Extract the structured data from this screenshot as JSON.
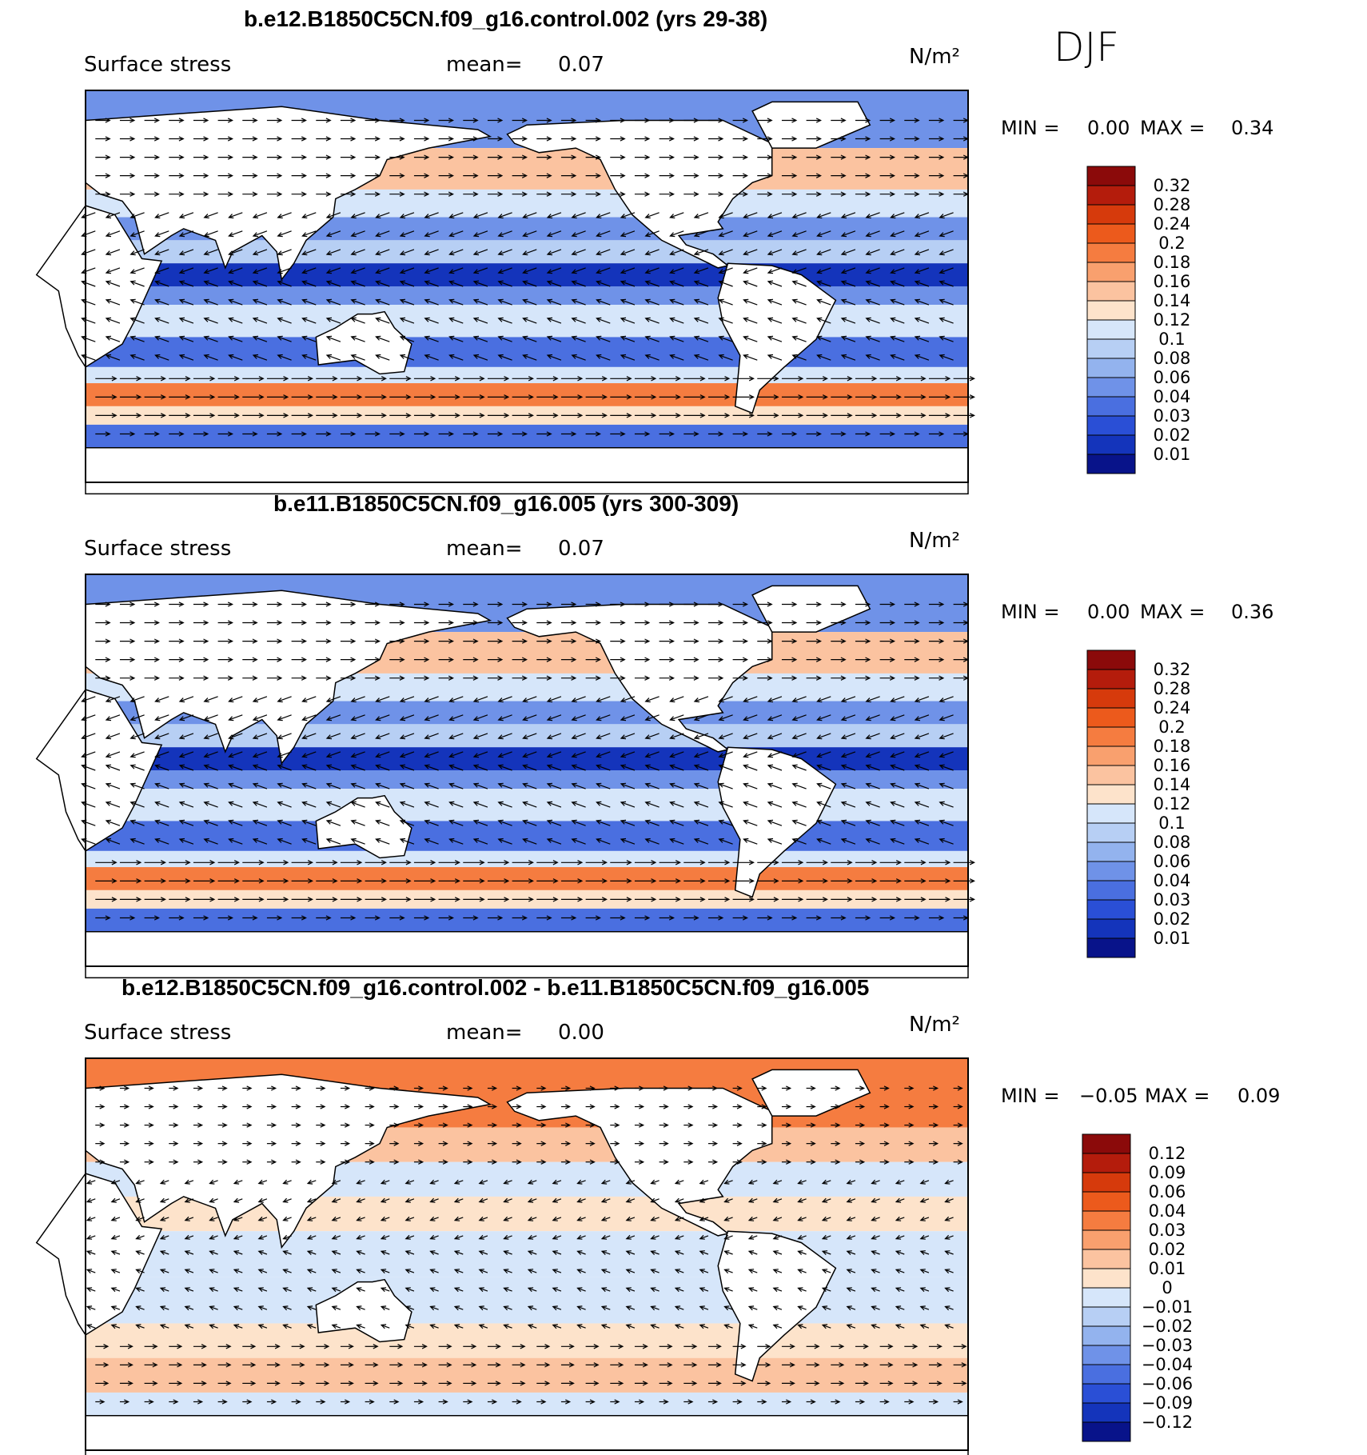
{
  "figure": {
    "season": "DJF",
    "colors": {
      "blue_dark": "#08107a",
      "blue": "#1f55d8",
      "blue_light": "#a8c4f0",
      "white": "#ffffff",
      "orange_light": "#f7c7a6",
      "red": "#e2541f",
      "red_dark": "#8b0d0d",
      "land": "#ffffff",
      "coast": "#000000"
    }
  },
  "chart_data": [
    {
      "type": "heatmap",
      "title": "b.e12.B1850C5CN.f09_g16.control.002 (yrs 29-38)",
      "variable": "Surface stress",
      "mean_label": "mean=",
      "mean_value": "0.07",
      "units": "N/m²",
      "min_label": "MIN =",
      "min_value": "0.00",
      "max_label": "MAX =",
      "max_value": "0.34",
      "colorbar_ticks": [
        "0.32",
        "0.28",
        "0.24",
        "0.2",
        "0.18",
        "0.16",
        "0.14",
        "0.12",
        "0.1",
        "0.08",
        "0.06",
        "0.04",
        "0.03",
        "0.02",
        "0.01"
      ],
      "colorbar_colors": [
        "#8b0a0a",
        "#b41c0c",
        "#d63a0c",
        "#ec5a1c",
        "#f57c40",
        "#f9a06e",
        "#fbc3a0",
        "#fde3cb",
        "#d6e6fa",
        "#b7cff4",
        "#93b3ee",
        "#6f92e8",
        "#4a6fe0",
        "#2a4fd6",
        "#1434bb",
        "#08138a"
      ],
      "xlabel": "",
      "ylabel": ""
    },
    {
      "type": "heatmap",
      "title": "b.e11.B1850C5CN.f09_g16.005 (yrs 300-309)",
      "variable": "Surface stress",
      "mean_label": "mean=",
      "mean_value": "0.07",
      "units": "N/m²",
      "min_label": "MIN =",
      "min_value": "0.00",
      "max_label": "MAX =",
      "max_value": "0.36",
      "colorbar_ticks": [
        "0.32",
        "0.28",
        "0.24",
        "0.2",
        "0.18",
        "0.16",
        "0.14",
        "0.12",
        "0.1",
        "0.08",
        "0.06",
        "0.04",
        "0.03",
        "0.02",
        "0.01"
      ],
      "colorbar_colors": [
        "#8b0a0a",
        "#b41c0c",
        "#d63a0c",
        "#ec5a1c",
        "#f57c40",
        "#f9a06e",
        "#fbc3a0",
        "#fde3cb",
        "#d6e6fa",
        "#b7cff4",
        "#93b3ee",
        "#6f92e8",
        "#4a6fe0",
        "#2a4fd6",
        "#1434bb",
        "#08138a"
      ],
      "xlabel": "",
      "ylabel": ""
    },
    {
      "type": "heatmap",
      "title": "b.e12.B1850C5CN.f09_g16.control.002 - b.e11.B1850C5CN.f09_g16.005",
      "variable": "Surface stress",
      "mean_label": "mean=",
      "mean_value": "0.00",
      "units": "N/m²",
      "min_label": "MIN =",
      "min_value": "−0.05",
      "max_label": "MAX =",
      "max_value": "0.09",
      "colorbar_ticks": [
        "0.12",
        "0.09",
        "0.06",
        "0.04",
        "0.03",
        "0.02",
        "0.01",
        "0",
        "−0.01",
        "−0.02",
        "−0.03",
        "−0.04",
        "−0.06",
        "−0.09",
        "−0.12"
      ],
      "colorbar_colors": [
        "#8b0a0a",
        "#b41c0c",
        "#d63a0c",
        "#ec5a1c",
        "#f57c40",
        "#f9a06e",
        "#fbc3a0",
        "#fde3cb",
        "#d6e6fa",
        "#b7cff4",
        "#93b3ee",
        "#6f92e8",
        "#4a6fe0",
        "#2a4fd6",
        "#1434bb",
        "#08138a"
      ],
      "xlabel": "",
      "ylabel": ""
    }
  ]
}
